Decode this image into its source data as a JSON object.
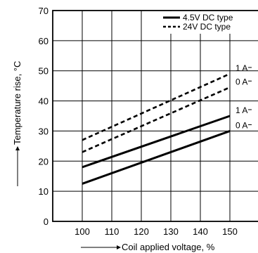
{
  "chart_data": {
    "type": "line",
    "xlabel": "Coil applied voltage, %",
    "ylabel": "Temperature rise, °C",
    "x_ticks": [
      "100",
      "110",
      "120",
      "130",
      "140",
      "150"
    ],
    "y_ticks": [
      "0",
      "10",
      "20",
      "30",
      "40",
      "50",
      "60",
      "70"
    ],
    "xlim": [
      90,
      160
    ],
    "ylim": [
      0,
      70
    ],
    "grid": true,
    "legend_position": "top-right",
    "series": [
      {
        "name": "4.5V DC type",
        "label": "1 A",
        "style": "solid",
        "x": [
          100,
          150
        ],
        "y": [
          18,
          35
        ]
      },
      {
        "name": "4.5V DC type",
        "label": "0 A",
        "style": "solid",
        "x": [
          100,
          150
        ],
        "y": [
          12.5,
          30
        ]
      },
      {
        "name": "24V DC type",
        "label": "1 A",
        "style": "dashed",
        "x": [
          100,
          150
        ],
        "y": [
          27,
          49
        ]
      },
      {
        "name": "24V DC type",
        "label": "0 A",
        "style": "dashed",
        "x": [
          100,
          150
        ],
        "y": [
          23,
          44.5
        ]
      }
    ],
    "legend": [
      {
        "name": "4.5V DC type",
        "style": "solid"
      },
      {
        "name": "24V DC type",
        "style": "dashed"
      }
    ],
    "colors": {
      "line": "#000000",
      "grid": "#000000",
      "background": "#ffffff"
    }
  }
}
